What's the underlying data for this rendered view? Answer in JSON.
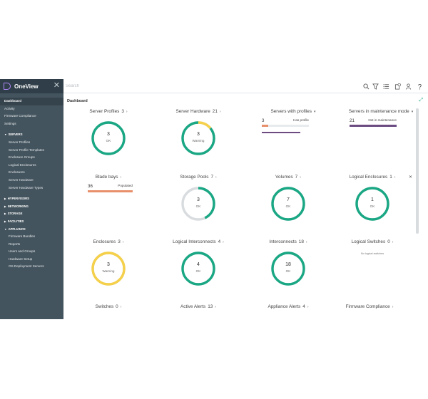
{
  "app": {
    "title": "OneView"
  },
  "search": {
    "placeholder": "Search"
  },
  "sidebar": {
    "top": [
      "Dashboard",
      "Activity",
      "Firmware Compliance",
      "Settings"
    ],
    "servers_header": "SERVERS",
    "servers": [
      "Server Profiles",
      "Server Profile Templates",
      "Enclosure Groups",
      "Logical Enclosures",
      "Enclosures",
      "Server Hardware",
      "Server Hardware Types"
    ],
    "hypervisors": "HYPERVISORS",
    "networking": "NETWORKING",
    "storage": "STORAGE",
    "facilities": "FACILITIES",
    "appliance_header": "APPLIANCE",
    "appliance": [
      "Firmware Bundles",
      "Reports",
      "Users and Groups",
      "Hardware Setup",
      "OS Deployment Servers"
    ]
  },
  "page": {
    "title": "Dashboard"
  },
  "colors": {
    "ok": "#1aa784",
    "warning": "#f5d04a",
    "track": "#d9dcdf",
    "orange": "#e8906c",
    "purple": "#6b4b82"
  },
  "tiles": {
    "server_profiles": {
      "title": "Server Profiles",
      "count": "3",
      "value": "3",
      "status": "OK"
    },
    "server_hardware": {
      "title": "Server Hardware",
      "count": "21",
      "value": "3",
      "status": "Warning"
    },
    "servers_with_profiles": {
      "title": "Servers with profiles",
      "value": "3",
      "label": "Has profile"
    },
    "servers_in_maintenance": {
      "title": "Servers in maintenance mode",
      "value": "21",
      "label": "Not in maintenance"
    },
    "blade_bays": {
      "title": "Blade bays",
      "value": "36",
      "label": "Populated"
    },
    "storage_pools": {
      "title": "Storage Pools",
      "count": "7",
      "value": "3",
      "status": "OK"
    },
    "volumes": {
      "title": "Volumes",
      "count": "7",
      "value": "7",
      "status": "OK"
    },
    "logical_enclosures": {
      "title": "Logical Enclosures",
      "count": "1",
      "value": "1",
      "status": "OK"
    },
    "enclosures": {
      "title": "Enclosures",
      "count": "3",
      "value": "3",
      "status": "Warning"
    },
    "logical_interconnects": {
      "title": "Logical Interconnects",
      "count": "4",
      "value": "4",
      "status": "OK"
    },
    "interconnects": {
      "title": "Interconnects",
      "count": "18",
      "value": "18",
      "status": "OK"
    },
    "logical_switches": {
      "title": "Logical Switches",
      "count": "0",
      "note": "No logical switches"
    },
    "switches": {
      "title": "Switches",
      "count": "0"
    },
    "active_alerts": {
      "title": "Active Alerts",
      "count": "13"
    },
    "appliance_alerts": {
      "title": "Appliance Alerts",
      "count": "4"
    },
    "firmware_compliance": {
      "title": "Firmware Compliance"
    }
  },
  "donuts": {
    "server_profiles": {
      "ok_fraction": 1.0,
      "warn_fraction": 0.0
    },
    "server_hardware": {
      "ok_fraction": 0.86,
      "warn_fraction": 0.14
    },
    "storage_pools": {
      "ok_fraction": 0.43,
      "warn_fraction": 0.0
    },
    "volumes": {
      "ok_fraction": 1.0,
      "warn_fraction": 0.0
    },
    "logical_enclosures": {
      "ok_fraction": 1.0,
      "warn_fraction": 0.0
    },
    "enclosures": {
      "ok_fraction": 0.0,
      "warn_fraction": 1.0
    },
    "logical_interconnects": {
      "ok_fraction": 1.0,
      "warn_fraction": 0.0
    },
    "interconnects": {
      "ok_fraction": 1.0,
      "warn_fraction": 0.0
    }
  },
  "bars": {
    "servers_with_profiles": {
      "fraction": 0.14
    },
    "servers_in_maintenance": {
      "fraction": 1.0
    },
    "blade_bays": {
      "fraction": 1.0
    }
  }
}
